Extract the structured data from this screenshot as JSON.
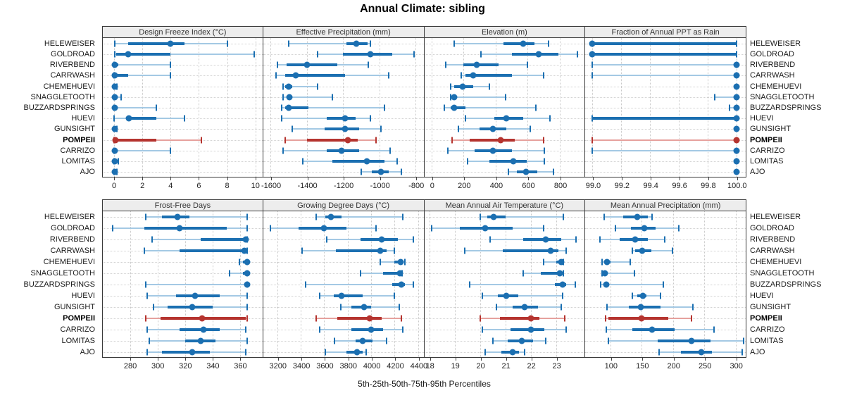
{
  "page_title": "Annual Climate: sibling",
  "footer_label": "5th-25th-50th-75th-95th Percentiles",
  "colors": {
    "blue": "#1b6fb1",
    "blue_light": "#a4c9e4",
    "red": "#b5342f",
    "red_light": "#e6a19d",
    "strip_bg": "#ededed",
    "panel_border": "#3a3a3a",
    "grid": "#cdcdcd"
  },
  "chart_data": {
    "type": "dotplot",
    "title": "Annual Climate: sibling",
    "xlabel": "5th-25th-50th-75th-95th Percentiles",
    "percentiles": [
      "5th",
      "25th",
      "50th",
      "75th",
      "95th"
    ],
    "legend_position": "none",
    "grid": true,
    "layout_hint": "2 bands x 4 panels; site names repeated on left and right margins; highlighted site drawn in red and bold",
    "sites": [
      "HELEWEISER",
      "GOLDROAD",
      "RIVERBEND",
      "CARRWASH",
      "CHEMEHUEVI",
      "SNAGGLETOOTH",
      "BUZZARDSPRINGS",
      "HUEVI",
      "GUNSIGHT",
      "POMPEII",
      "CARRIZO",
      "LOMITAS",
      "AJO"
    ],
    "highlight_site": "POMPEII",
    "panels": [
      {
        "title": "Design Freeze Index (°C)",
        "band": "top",
        "ticks": [
          0,
          2,
          4,
          6,
          8,
          10
        ],
        "range": [
          -0.8,
          10.5
        ],
        "values": [
          [
            0.05,
            1.0,
            4.0,
            5.0,
            8.0
          ],
          [
            0.05,
            0.15,
            1.0,
            4.0,
            9.9
          ],
          [
            0,
            0.02,
            0.05,
            0.3,
            4.0
          ],
          [
            0,
            0.02,
            0.05,
            1.0,
            4.0
          ],
          [
            0,
            0.02,
            0.05,
            0.1,
            0.2
          ],
          [
            0,
            0.02,
            0.05,
            0.1,
            0.5
          ],
          [
            0,
            0.02,
            0.05,
            0.1,
            3.0
          ],
          [
            0,
            0.9,
            1.05,
            3.0,
            5.0
          ],
          [
            0,
            0.02,
            0.05,
            0.1,
            0.2
          ],
          [
            0,
            0.05,
            0.1,
            3.0,
            6.2
          ],
          [
            0,
            0.02,
            0.05,
            0.2,
            4.0
          ],
          [
            0,
            0.02,
            0.05,
            0.1,
            0.3
          ],
          [
            0,
            0.02,
            0.05,
            0.1,
            0.2
          ]
        ]
      },
      {
        "title": "Effective Precipitation (mm)",
        "band": "top",
        "ticks": [
          -1600,
          -1400,
          -1200,
          -1000,
          -800
        ],
        "range": [
          -1640,
          -760
        ],
        "values": [
          [
            -1500,
            -1180,
            -1125,
            -1065,
            -1050
          ],
          [
            -1340,
            -1200,
            -1050,
            -930,
            -810
          ],
          [
            -1560,
            -1510,
            -1400,
            -1230,
            -1060
          ],
          [
            -1570,
            -1520,
            -1460,
            -1190,
            -950
          ],
          [
            -1530,
            -1520,
            -1500,
            -1480,
            -1340
          ],
          [
            -1530,
            -1510,
            -1495,
            -1480,
            -1260
          ],
          [
            -1540,
            -1520,
            -1500,
            -1390,
            -970
          ],
          [
            -1540,
            -1290,
            -1190,
            -1130,
            -1050
          ],
          [
            -1480,
            -1300,
            -1190,
            -1110,
            -990
          ],
          [
            -1520,
            -1400,
            -1175,
            -1120,
            -1020
          ],
          [
            -1530,
            -1290,
            -1210,
            -1110,
            -940
          ],
          [
            -1420,
            -1260,
            -1070,
            -970,
            -900
          ],
          [
            -1100,
            -1040,
            -990,
            -950,
            -880
          ]
        ]
      },
      {
        "title": "Elevation (m)",
        "band": "top",
        "ticks": [
          0,
          200,
          400,
          600,
          800
        ],
        "range": [
          -45,
          950
        ],
        "values": [
          [
            140,
            450,
            570,
            640,
            730
          ],
          [
            310,
            500,
            670,
            790,
            910
          ],
          [
            90,
            200,
            280,
            420,
            600
          ],
          [
            185,
            210,
            260,
            500,
            700
          ],
          [
            120,
            140,
            195,
            260,
            360
          ],
          [
            120,
            130,
            140,
            160,
            460
          ],
          [
            80,
            120,
            140,
            210,
            650
          ],
          [
            210,
            390,
            465,
            570,
            740
          ],
          [
            170,
            300,
            385,
            465,
            615
          ],
          [
            130,
            240,
            430,
            520,
            700
          ],
          [
            100,
            270,
            385,
            500,
            705
          ],
          [
            225,
            360,
            510,
            595,
            705
          ],
          [
            480,
            530,
            590,
            660,
            760
          ]
        ]
      },
      {
        "title": "Fraction of Annual PPT as Rain",
        "band": "top",
        "ticks": [
          99.0,
          99.2,
          99.4,
          99.6,
          99.8,
          100.0
        ],
        "tick_decimals": 1,
        "range": [
          98.95,
          100.06
        ],
        "values": [
          [
            99.0,
            99.0,
            99.0,
            100.0,
            100.0
          ],
          [
            99.0,
            99.0,
            99.0,
            100.0,
            100.0
          ],
          [
            99.0,
            100.0,
            100.0,
            100.0,
            100.0
          ],
          [
            99.0,
            100.0,
            100.0,
            100.0,
            100.0
          ],
          [
            100.0,
            100.0,
            100.0,
            100.0,
            100.0
          ],
          [
            99.85,
            100.0,
            100.0,
            100.0,
            100.0
          ],
          [
            99.95,
            100.0,
            100.0,
            100.0,
            100.0
          ],
          [
            99.0,
            99.0,
            100.0,
            100.0,
            100.0
          ],
          [
            100.0,
            100.0,
            100.0,
            100.0,
            100.0
          ],
          [
            99.0,
            100.0,
            100.0,
            100.0,
            100.0
          ],
          [
            99.0,
            100.0,
            100.0,
            100.0,
            100.0
          ],
          [
            100.0,
            100.0,
            100.0,
            100.0,
            100.0
          ],
          [
            100.0,
            100.0,
            100.0,
            100.0,
            100.0
          ]
        ]
      },
      {
        "title": "Frost-Free Days",
        "band": "bottom",
        "ticks": [
          280,
          300,
          320,
          340,
          360
        ],
        "range": [
          260,
          376
        ],
        "values": [
          [
            291,
            303,
            314,
            323,
            365
          ],
          [
            267,
            290,
            316,
            350,
            365
          ],
          [
            296,
            331,
            364,
            365,
            365
          ],
          [
            290,
            316,
            363,
            365,
            365
          ],
          [
            359,
            362,
            365,
            365,
            365
          ],
          [
            352,
            362,
            365,
            365,
            365
          ],
          [
            291,
            363,
            365,
            365,
            365
          ],
          [
            292,
            313,
            327,
            345,
            365
          ],
          [
            297,
            307,
            325,
            340,
            365
          ],
          [
            291,
            302,
            332,
            364,
            365
          ],
          [
            292,
            316,
            333,
            345,
            364
          ],
          [
            294,
            320,
            331,
            342,
            365
          ],
          [
            292,
            303,
            325,
            338,
            364
          ]
        ]
      },
      {
        "title": "Growing Degree Days (°C)",
        "band": "bottom",
        "ticks": [
          3200,
          3400,
          3600,
          3800,
          4000,
          4200,
          4400
        ],
        "range": [
          3080,
          4440
        ],
        "values": [
          [
            3530,
            3610,
            3660,
            3750,
            4270
          ],
          [
            3140,
            3380,
            3600,
            3790,
            4040
          ],
          [
            3620,
            3910,
            4090,
            4230,
            4360
          ],
          [
            3410,
            3700,
            4080,
            4130,
            4200
          ],
          [
            4080,
            4200,
            4250,
            4270,
            4285
          ],
          [
            3910,
            4100,
            4245,
            4255,
            4265
          ],
          [
            3440,
            4180,
            4260,
            4285,
            4360
          ],
          [
            3560,
            3680,
            3750,
            3930,
            4200
          ],
          [
            3740,
            3830,
            3940,
            4000,
            4240
          ],
          [
            3530,
            3710,
            3990,
            4090,
            4260
          ],
          [
            3560,
            3830,
            4000,
            4100,
            4270
          ],
          [
            3690,
            3870,
            3930,
            4010,
            4130
          ],
          [
            3610,
            3790,
            3880,
            3930,
            3955
          ]
        ]
      },
      {
        "title": "Mean Annual Air Temperature (°C)",
        "band": "bottom",
        "ticks": [
          18,
          19,
          20,
          21,
          22,
          23
        ],
        "range": [
          17.8,
          24.1
        ],
        "values": [
          [
            20.0,
            20.3,
            20.55,
            21.0,
            23.3
          ],
          [
            18.1,
            19.2,
            20.2,
            21.3,
            22.5
          ],
          [
            20.4,
            21.7,
            22.6,
            23.2,
            23.8
          ],
          [
            19.4,
            20.9,
            22.8,
            23.1,
            23.4
          ],
          [
            22.5,
            23.0,
            23.2,
            23.25,
            23.3
          ],
          [
            21.7,
            22.4,
            23.15,
            23.25,
            23.3
          ],
          [
            19.6,
            22.95,
            23.25,
            23.4,
            23.75
          ],
          [
            20.1,
            20.7,
            21.05,
            21.5,
            23.25
          ],
          [
            20.65,
            21.3,
            21.75,
            22.3,
            23.2
          ],
          [
            20.0,
            20.8,
            22.0,
            22.35,
            23.35
          ],
          [
            20.1,
            21.2,
            22.0,
            22.55,
            23.4
          ],
          [
            20.5,
            21.1,
            21.65,
            22.1,
            22.6
          ],
          [
            20.2,
            20.85,
            21.3,
            21.55,
            21.75
          ]
        ]
      },
      {
        "title": "Mean Annual Precipitation (mm)",
        "band": "bottom",
        "ticks": [
          100,
          150,
          200,
          250,
          300
        ],
        "range": [
          60,
          315
        ],
        "values": [
          [
            90,
            120,
            143,
            160,
            167
          ],
          [
            108,
            133,
            154,
            172,
            209
          ],
          [
            83,
            115,
            140,
            160,
            187
          ],
          [
            135,
            140,
            151,
            165,
            199
          ],
          [
            87,
            90,
            95,
            100,
            132
          ],
          [
            87,
            89,
            91,
            95,
            139
          ],
          [
            85,
            89,
            93,
            97,
            184
          ],
          [
            135,
            143,
            152,
            158,
            180
          ],
          [
            95,
            130,
            148,
            180,
            232
          ],
          [
            92,
            97,
            150,
            192,
            230
          ],
          [
            93,
            135,
            166,
            203,
            265
          ],
          [
            97,
            175,
            229,
            260,
            313
          ],
          [
            178,
            213,
            245,
            262,
            310
          ]
        ]
      }
    ]
  }
}
